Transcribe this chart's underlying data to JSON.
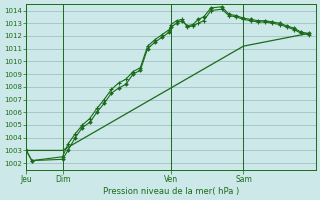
{
  "bg_color": "#cce8e8",
  "grid_color": "#99bbbb",
  "line_color": "#1a6b1a",
  "marker_color": "#1a6b1a",
  "text_color": "#1a6b1a",
  "xlabel": "Pression niveau de la mer( hPa )",
  "ylim": [
    1001.5,
    1014.5
  ],
  "yticks": [
    1002,
    1003,
    1004,
    1005,
    1006,
    1007,
    1008,
    1009,
    1010,
    1011,
    1012,
    1013,
    1014
  ],
  "day_labels": [
    "Jeu",
    "Dim",
    "Ven",
    "Sam"
  ],
  "day_positions": [
    0,
    2,
    8,
    12
  ],
  "xlim": [
    0,
    16
  ],
  "series1_x": [
    0,
    0.3,
    2.0,
    2.3,
    2.7,
    3.1,
    3.5,
    3.9,
    4.3,
    4.7,
    5.1,
    5.5,
    5.9,
    6.3,
    6.7,
    7.1,
    7.5,
    7.9,
    8.0,
    8.3,
    8.6,
    8.9,
    9.2,
    9.5,
    9.8,
    10.2,
    10.8,
    11.2,
    11.6,
    12.0,
    12.4,
    12.8,
    13.2,
    13.6,
    14.0,
    14.4,
    14.8,
    15.2,
    15.6
  ],
  "series1_y": [
    1003.0,
    1002.2,
    1002.3,
    1003.0,
    1004.0,
    1004.8,
    1005.2,
    1006.0,
    1006.7,
    1007.5,
    1007.9,
    1008.2,
    1009.0,
    1009.3,
    1011.0,
    1011.5,
    1011.9,
    1012.3,
    1012.7,
    1013.0,
    1013.2,
    1012.8,
    1012.9,
    1013.3,
    1013.5,
    1014.2,
    1014.3,
    1013.7,
    1013.6,
    1013.4,
    1013.3,
    1013.2,
    1013.2,
    1013.1,
    1013.0,
    1012.8,
    1012.6,
    1012.3,
    1012.2
  ],
  "series2_x": [
    0,
    0.3,
    2.0,
    2.3,
    2.7,
    3.1,
    3.5,
    3.9,
    4.3,
    4.7,
    5.1,
    5.5,
    5.9,
    6.3,
    6.7,
    7.1,
    7.5,
    7.9,
    8.0,
    8.3,
    8.6,
    8.9,
    9.2,
    9.5,
    9.8,
    10.2,
    10.8,
    11.2,
    11.6,
    12.0,
    12.4,
    12.8,
    13.2,
    13.6,
    14.0,
    14.4,
    14.8,
    15.2,
    15.6
  ],
  "series2_y": [
    1003.0,
    1002.2,
    1002.5,
    1003.5,
    1004.3,
    1005.0,
    1005.5,
    1006.3,
    1007.0,
    1007.8,
    1008.3,
    1008.6,
    1009.2,
    1009.5,
    1011.2,
    1011.7,
    1012.1,
    1012.5,
    1012.9,
    1013.2,
    1013.3,
    1012.7,
    1012.8,
    1013.0,
    1013.2,
    1014.0,
    1014.1,
    1013.6,
    1013.5,
    1013.3,
    1013.2,
    1013.1,
    1013.1,
    1013.0,
    1012.9,
    1012.7,
    1012.5,
    1012.2,
    1012.1
  ],
  "series3_x": [
    0,
    2,
    12,
    15.6
  ],
  "series3_y": [
    1003.0,
    1003.0,
    1011.2,
    1012.2
  ]
}
